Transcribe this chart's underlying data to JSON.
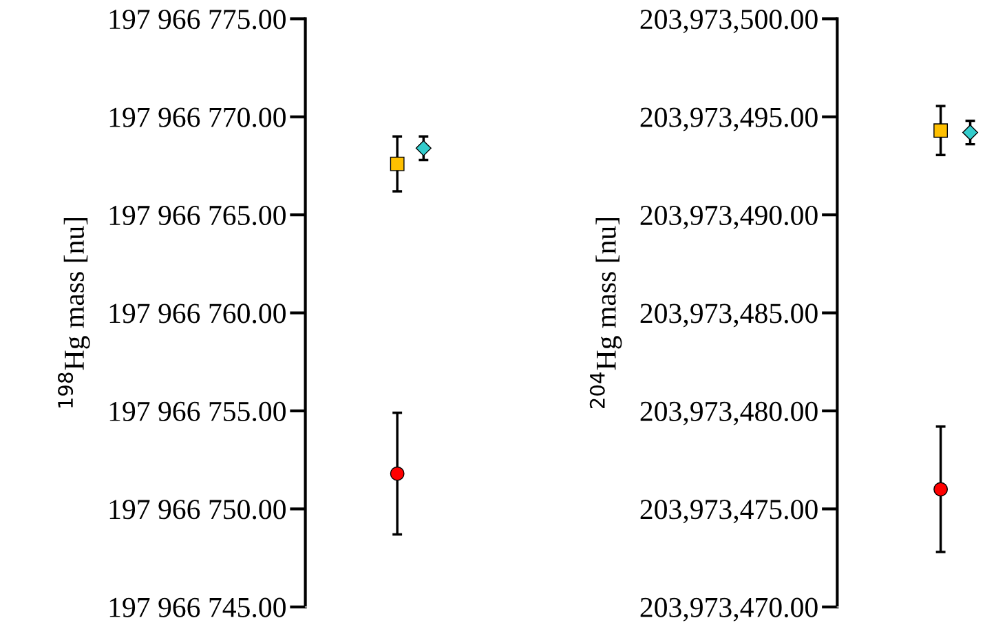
{
  "chart_data": [
    {
      "type": "scatter",
      "ylabel": "$^{198}$Hg mass [nu]",
      "categories": [
        null,
        null,
        null,
        null,
        null,
        null
      ],
      "series": [
        {
          "color": "#ff0000",
          "marker": "circle",
          "values": [
            null,
            null,
            null,
            197966751.8,
            null,
            null
          ],
          "errors": [
            null,
            null,
            null,
            3.1,
            null,
            null
          ]
        },
        {
          "color": "#ffc000",
          "marker": "square",
          "values": [
            null,
            null,
            null,
            197966767.6,
            null,
            null
          ],
          "errors": [
            null,
            null,
            null,
            1.4,
            null,
            null
          ]
        },
        {
          "color": "#33cccc",
          "marker": "diamond",
          "values": [
            null,
            null,
            null,
            null,
            197966768.4,
            null
          ],
          "errors": [
            null,
            null,
            null,
            null,
            0.6,
            null
          ]
        }
      ],
      "ylim": [
        197966745,
        197966775
      ],
      "yticks": [
        {
          "value": 197966745,
          "label": "197 966 745.00"
        },
        {
          "value": 197966750,
          "label": "197 966 750.00"
        },
        {
          "value": 197966755,
          "label": "197 966 755.00"
        },
        {
          "value": 197966760,
          "label": "197 966 760.00"
        },
        {
          "value": 197966765,
          "label": "197 966 765.00"
        },
        {
          "value": 197966770,
          "label": "197 966 770.00"
        },
        {
          "value": 197966775,
          "label": "197 966 775.00"
        }
      ],
      "grid": false,
      "legend": false,
      "tick_labels": "y"
    },
    {
      "type": "scatter",
      "ylabel": "$^{204}$Hg mass [nu]",
      "categories": [
        null,
        null,
        null,
        null,
        null
      ],
      "series": [
        {
          "color": "#ff0000",
          "marker": "circle",
          "values": [
            null,
            null,
            null,
            203973476.0,
            null
          ],
          "errors": [
            null,
            null,
            null,
            3.2,
            null
          ]
        },
        {
          "color": "#ffc000",
          "marker": "square",
          "values": [
            null,
            null,
            null,
            203973494.3,
            null
          ],
          "errors": [
            null,
            null,
            null,
            1.25,
            null
          ]
        },
        {
          "color": "#33cccc",
          "marker": "diamond",
          "values": [
            null,
            null,
            null,
            null,
            203973494.2
          ],
          "errors": [
            null,
            null,
            null,
            null,
            0.6
          ]
        }
      ],
      "ylim": [
        203973470,
        203973500
      ],
      "yticks": [
        {
          "value": 203973470,
          "label": "203,973,470.00"
        },
        {
          "value": 203973475,
          "label": "203,973,475.00"
        },
        {
          "value": 203973480,
          "label": "203,973,480.00"
        },
        {
          "value": 203973485,
          "label": "203,973,485.00"
        },
        {
          "value": 203973490,
          "label": "203,973,490.00"
        },
        {
          "value": 203973495,
          "label": "203,973,495.00"
        },
        {
          "value": 203973500,
          "label": "203,973,500.00"
        }
      ],
      "grid": false,
      "legend": false,
      "tick_labels": "y"
    }
  ]
}
